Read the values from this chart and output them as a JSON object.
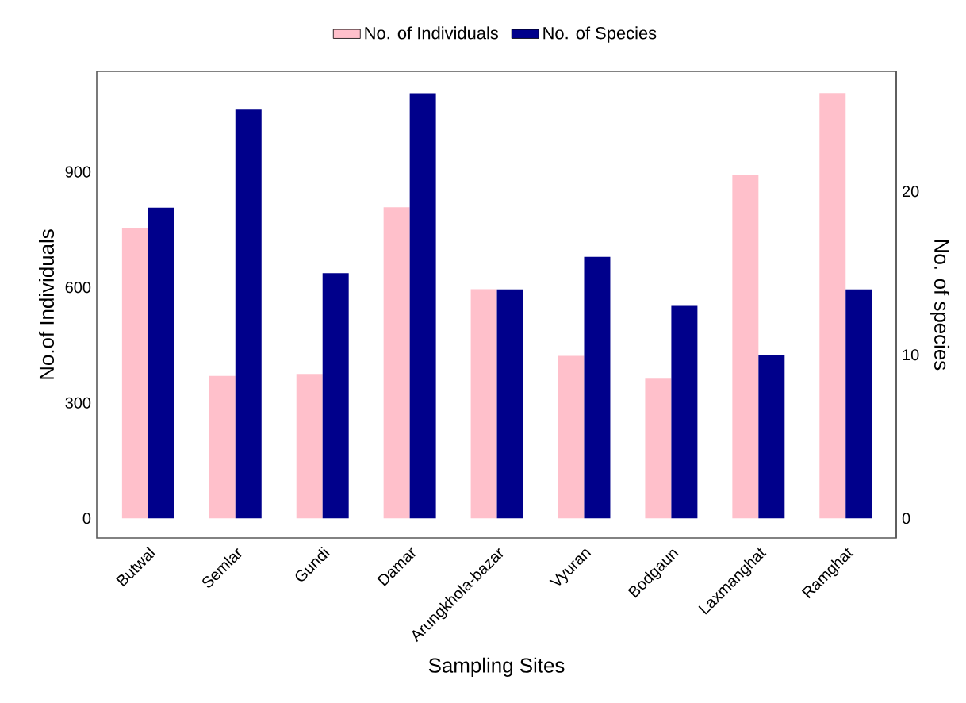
{
  "chart_data": {
    "type": "bar",
    "xlabel": "Sampling Sites",
    "ylabel": "No.of Individuals",
    "y2label": "No. of species",
    "categories": [
      "Butwal",
      "Semlar",
      "Gundi",
      "Damar",
      "Arungkhola-bazar",
      "Vyuran",
      "Bodgaun",
      "Laxmanghat",
      "Ramghat"
    ],
    "series": [
      {
        "name": "No. of Individuals",
        "color": "#ffc0cb",
        "values": [
          755,
          370,
          375,
          808,
          595,
          422,
          363,
          892,
          1105
        ]
      },
      {
        "name": "No. of Species",
        "color": "#00008b",
        "axis": "y2",
        "values": [
          19,
          25,
          15,
          26,
          14,
          16,
          13,
          10,
          14
        ]
      }
    ],
    "ylim": [
      -51,
      1161
    ],
    "yticks": [
      0,
      300,
      600,
      900
    ],
    "y2lim": [
      -1.2,
      27.34
    ],
    "y2ticks": [
      0,
      10,
      20
    ],
    "legend": "top",
    "grid": false
  }
}
